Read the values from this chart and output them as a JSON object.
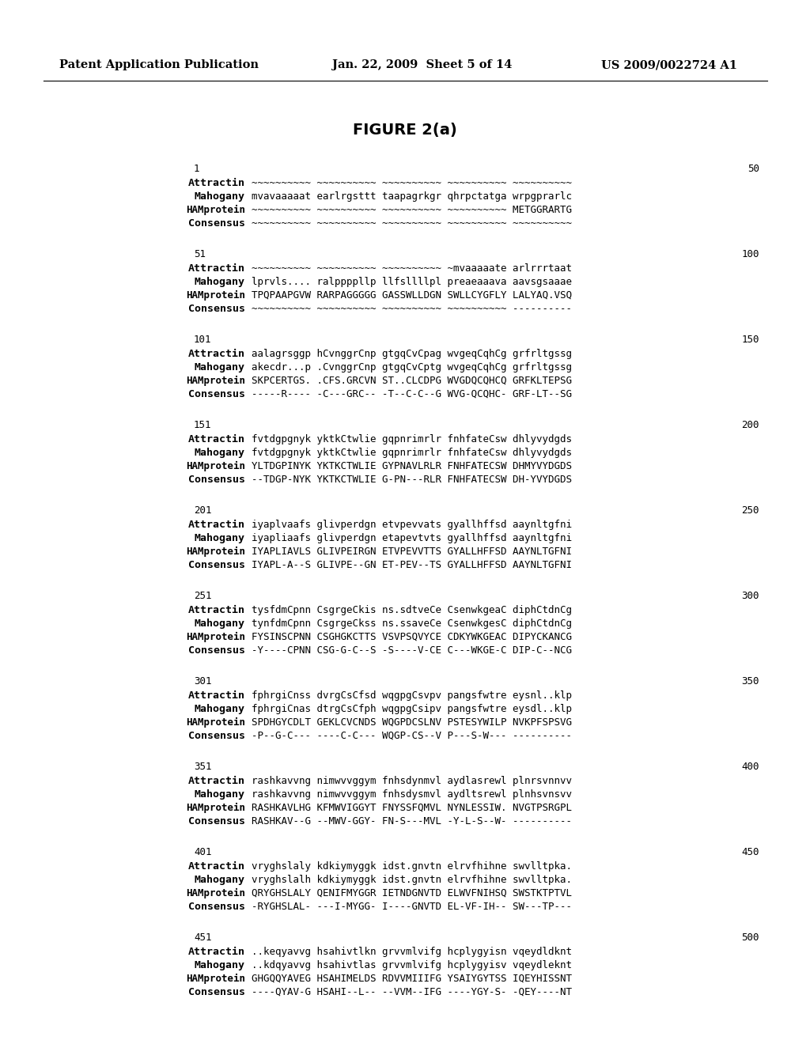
{
  "header_left": "Patent Application Publication",
  "header_mid": "Jan. 22, 2009  Sheet 5 of 14",
  "header_right": "US 2009/0022724 A1",
  "figure_title": "FIGURE 2(a)",
  "blocks": [
    {
      "range_start": "1",
      "range_end": "50",
      "rows": [
        {
          "label": "Attractin",
          "text": "~~~~~~~~~~ ~~~~~~~~~~ ~~~~~~~~~~ ~~~~~~~~~~ ~~~~~~~~~~"
        },
        {
          "label": "Mahogany",
          "text": "mvavaaaaat earlrgsttt taapagrkgr qhrpctatga wrpgprarlc"
        },
        {
          "label": "HAMprotein",
          "text": "~~~~~~~~~~ ~~~~~~~~~~ ~~~~~~~~~~ ~~~~~~~~~~ METGGRARTG"
        },
        {
          "label": "Consensus",
          "text": "~~~~~~~~~~ ~~~~~~~~~~ ~~~~~~~~~~ ~~~~~~~~~~ ~~~~~~~~~~"
        }
      ]
    },
    {
      "range_start": "51",
      "range_end": "100",
      "rows": [
        {
          "label": "Attractin",
          "text": "~~~~~~~~~~ ~~~~~~~~~~ ~~~~~~~~~~ ~mvaaaaate arlrrrtaat"
        },
        {
          "label": "Mahogany",
          "text": "lprvls.... ralppppllp llfsllllpl preaeaaava aavsgsaaae"
        },
        {
          "label": "HAMprotein",
          "text": "TPQPAAPGVW RARPAGGGGG GASSWLLDGN SWLLCYGFLY LALYAQ.VSQ"
        },
        {
          "label": "Consensus",
          "text": "~~~~~~~~~~ ~~~~~~~~~~ ~~~~~~~~~~ ~~~~~~~~~~ ----------"
        }
      ]
    },
    {
      "range_start": "101",
      "range_end": "150",
      "rows": [
        {
          "label": "Attractin",
          "text": "aalagrsggp hCvnggrCnp gtgqCvCpag wvgeqCqhCg grfrltgssg"
        },
        {
          "label": "Mahogany",
          "text": "akecdr...p .CvnggrCnp gtgqCvCptg wvgeqCqhCg grfrltgssg"
        },
        {
          "label": "HAMprotein",
          "text": "SKPCERTGS. .CFS.GRCVN ST..CLCDPG WVGDQCQHCQ GRFKLTEPSG"
        },
        {
          "label": "Consensus",
          "text": "-----R---- -C---GRC-- -T--C-C--G WVG-QCQHC- GRF-LT--SG"
        }
      ]
    },
    {
      "range_start": "151",
      "range_end": "200",
      "rows": [
        {
          "label": "Attractin",
          "text": "fvtdgpgnyk yktkCtwlie gqpnrimrlr fnhfateCsw dhlyvydgds"
        },
        {
          "label": "Mahogany",
          "text": "fvtdgpgnyk yktkCtwlie gqpnrimrlr fnhfateCsw dhlyvydgds"
        },
        {
          "label": "HAMprotein",
          "text": "YLTDGPINYK YKTKCTWLIE GYPNAVLRLR FNHFATECSW DHMYVYDGDS"
        },
        {
          "label": "Consensus",
          "text": "--TDGP-NYK YKTKCTWLIE G-PN---RLR FNHFATECSW DH-YVYDGDS"
        }
      ]
    },
    {
      "range_start": "201",
      "range_end": "250",
      "rows": [
        {
          "label": "Attractin",
          "text": "iyaplvaafs glivperdgn etvpevvats gyallhffsd aaynltgfni"
        },
        {
          "label": "Mahogany",
          "text": "iyapliaafs glivperdgn etapevtvts gyallhffsd aaynltgfni"
        },
        {
          "label": "HAMprotein",
          "text": "IYAPLIAVLS GLIVPEIRGN ETVPEVVTTS GYALLHFFSD AAYNLTGFNI"
        },
        {
          "label": "Consensus",
          "text": "IYAPL-A--S GLIVPE--GN ET-PEV--TS GYALLHFFSD AAYNLTGFNI"
        }
      ]
    },
    {
      "range_start": "251",
      "range_end": "300",
      "rows": [
        {
          "label": "Attractin",
          "text": "tysfdmCpnn CsgrgeCkis ns.sdtveCe CsenwkgeaC diphCtdnCg"
        },
        {
          "label": "Mahogany",
          "text": "tynfdmCpnn CsgrgeCkss ns.ssaveCe CsenwkgesC diphCtdnCg"
        },
        {
          "label": "HAMprotein",
          "text": "FYSINSCPNN CSGHGKCTTS VSVPSQVYCE CDKYWKGEAC DIPYCKANCG"
        },
        {
          "label": "Consensus",
          "text": "-Y----CPNN CSG-G-C--S -S----V-CE C---WKGE-C DIP-C--NCG"
        }
      ]
    },
    {
      "range_start": "301",
      "range_end": "350",
      "rows": [
        {
          "label": "Attractin",
          "text": "fphrgiCnss dvrgCsCfsd wqgpgCsvpv pangsfwtre eysnl..klp"
        },
        {
          "label": "Mahogany",
          "text": "fphrgiCnas dtrgCsCfph wqgpgCsipv pangsfwtre eysdl..klp"
        },
        {
          "label": "HAMprotein",
          "text": "SPDHGYCDLT GEKLCVCNDS WQGPDCSLNV PSTESYWILP NVKPFSPSVG"
        },
        {
          "label": "Consensus",
          "text": "-P--G-C--- ----C-C--- WQGP-CS--V P---S-W--- ----------"
        }
      ]
    },
    {
      "range_start": "351",
      "range_end": "400",
      "rows": [
        {
          "label": "Attractin",
          "text": "rashkavvng nimwvvggym fnhsdynmvl aydlasrewl plnrsvnnvv"
        },
        {
          "label": "Mahogany",
          "text": "rashkavvng nimwvvggym fnhsdysmvl aydltsrewl plnhsvnsvv"
        },
        {
          "label": "HAMprotein",
          "text": "RASHKAVLHG KFMWVIGGYT FNYSSFQMVL NYNLESSIW. NVGTPSRGPL"
        },
        {
          "label": "Consensus",
          "text": "RASHKAV--G --MWV-GGY- FN-S---MVL -Y-L-S--W- ----------"
        }
      ]
    },
    {
      "range_start": "401",
      "range_end": "450",
      "rows": [
        {
          "label": "Attractin",
          "text": "vryghslaly kdkiymyggk idst.gnvtn elrvfhihne swvlltpka."
        },
        {
          "label": "Mahogany",
          "text": "vryghslalh kdkiymyggk idst.gnvtn elrvfhihne swvlltpka."
        },
        {
          "label": "HAMprotein",
          "text": "QRYGHSLALY QENIFMYGGR IETNDGNVTD ELWVFNIHSQ SWSTKTPTVL"
        },
        {
          "label": "Consensus",
          "text": "-RYGHSLAL- ---I-MYGG- I----GNVTD EL-VF-IH-- SW---TP---"
        }
      ]
    },
    {
      "range_start": "451",
      "range_end": "500",
      "rows": [
        {
          "label": "Attractin",
          "text": "..keqyavvg hsahivtlkn grvvmlvifg hcplygyisn vqeydldknt"
        },
        {
          "label": "Mahogany",
          "text": "..kdqyavvg hsahivtlas grvvmlvifg hcplygyisv vqeydleknt"
        },
        {
          "label": "HAMprotein",
          "text": "GHGQQYAVEG HSAHIMELDS RDVVMIIIFG YSAIYGYTSS IQEYHISSNT"
        },
        {
          "label": "Consensus",
          "text": "----QYAV-G HSAHI--L-- --VVM--IFG ----YGY-S- -QEY----NT"
        }
      ]
    }
  ]
}
